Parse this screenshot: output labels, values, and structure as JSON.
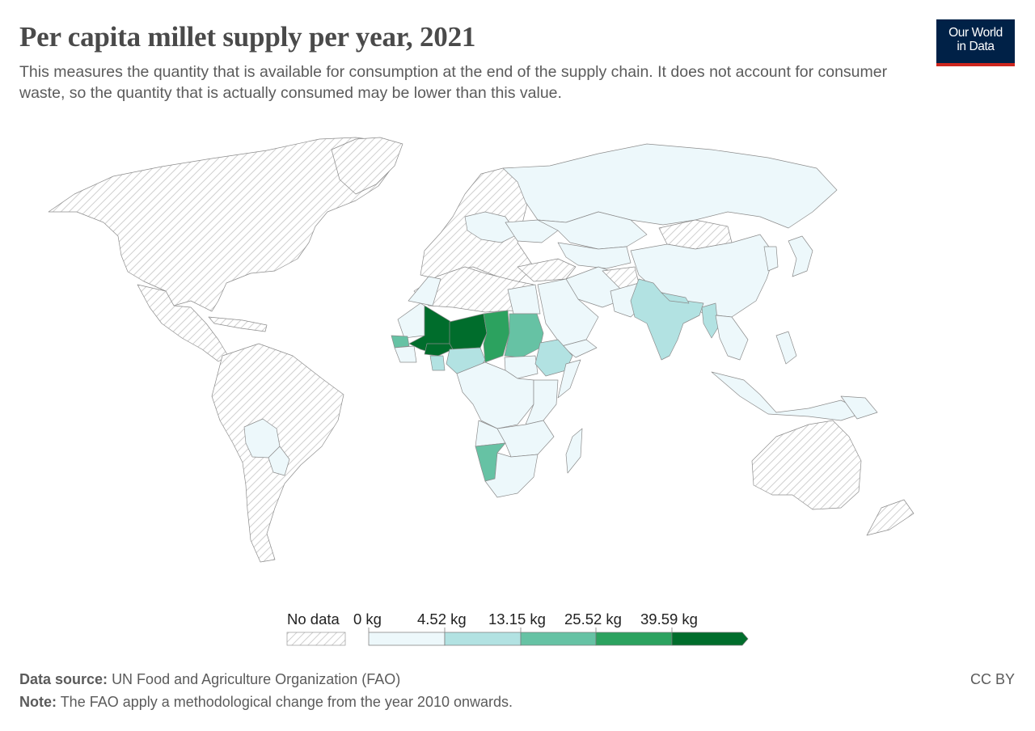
{
  "header": {
    "title": "Per capita millet supply per year, 2021",
    "subtitle": "This measures the quantity that is available for consumption at the end of the supply chain. It does not account for consumer waste, so the quantity that is actually consumed may be lower than this value."
  },
  "logo": {
    "line1": "Our World",
    "line2": "in Data"
  },
  "legend": {
    "no_data_label": "No data",
    "bins": [
      {
        "from": "0 kg",
        "color": "#edf8fb"
      },
      {
        "from": "4.52 kg",
        "color": "#b2e2e2"
      },
      {
        "from": "13.15 kg",
        "color": "#66c2a4"
      },
      {
        "from": "25.52 kg",
        "color": "#2ca25f"
      },
      {
        "from": "39.59 kg",
        "color": "#006d2c"
      }
    ]
  },
  "map_colors": {
    "no_data_hatch": "#cfcfcf",
    "bin0": "#edf8fb",
    "bin1": "#b2e2e2",
    "bin2": "#66c2a4",
    "bin3": "#2ca25f",
    "bin4": "#006d2c",
    "border": "#8c8c8c"
  },
  "footer": {
    "source_label": "Data source:",
    "source_text": "UN Food and Agriculture Organization (FAO)",
    "note_label": "Note:",
    "note_text": "The FAO apply a methodological change from the year 2010 onwards.",
    "license": "CC BY"
  }
}
